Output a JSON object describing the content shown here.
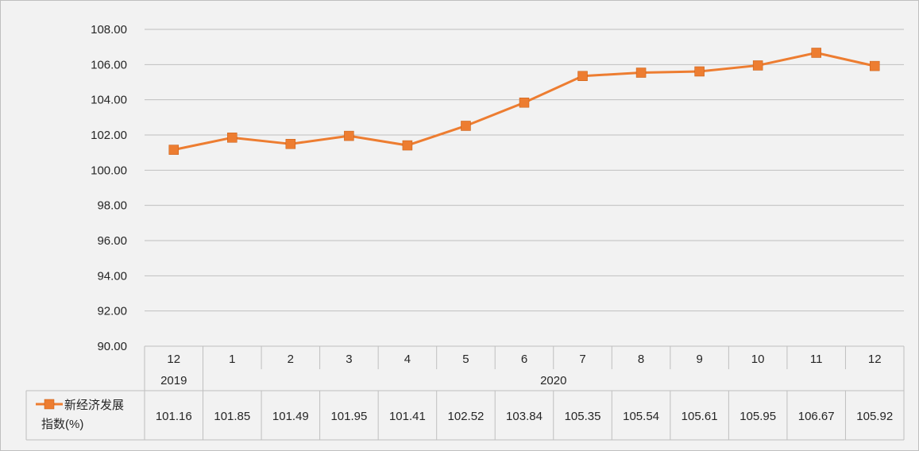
{
  "chart_data": {
    "type": "line",
    "categories": [
      "12",
      "1",
      "2",
      "3",
      "4",
      "5",
      "6",
      "7",
      "8",
      "9",
      "10",
      "11",
      "12"
    ],
    "year_groups": [
      {
        "label": "2019",
        "count": 1
      },
      {
        "label": "2020",
        "count": 12
      }
    ],
    "series": [
      {
        "name": "新经济发展指数(%)",
        "legend_lines": [
          "新经济发展",
          "指数(%)"
        ],
        "color": "#ed7d31",
        "marker": "square",
        "values": [
          101.16,
          101.85,
          101.49,
          101.95,
          101.41,
          102.52,
          103.84,
          105.35,
          105.54,
          105.61,
          105.95,
          106.67,
          105.92
        ],
        "labels": [
          "101.16",
          "101.85",
          "101.49",
          "101.95",
          "101.41",
          "102.52",
          "103.84",
          "105.35",
          "105.54",
          "105.61",
          "105.95",
          "106.67",
          "105.92"
        ]
      }
    ],
    "y_ticks": [
      "90.00",
      "92.00",
      "94.00",
      "96.00",
      "98.00",
      "100.00",
      "102.00",
      "104.00",
      "106.00",
      "108.00"
    ],
    "ylim": [
      90,
      108
    ],
    "grid": true,
    "legend_position": "data-table-left",
    "title": "",
    "xlabel": "",
    "ylabel": ""
  }
}
